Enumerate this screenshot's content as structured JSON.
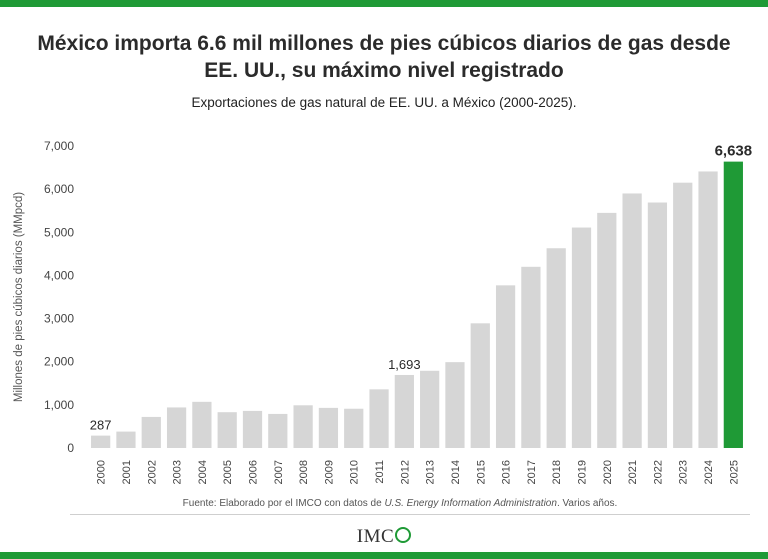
{
  "colors": {
    "brand_green": "#1f9a36",
    "bar_gray": "#d6d6d6",
    "highlight_bar": "#1f9a36"
  },
  "title": "México importa 6.6 mil millones de pies cúbicos diarios de gas desde EE. UU., su máximo nivel registrado",
  "subtitle": "Exportaciones de gas natural de EE. UU. a México (2000-2025).",
  "source": {
    "prefix": "Fuente: Elaborado por el IMCO con datos de ",
    "italic": "U.S. Energy Information Administration",
    "suffix": ". Varios años."
  },
  "logo": {
    "text": "IMC"
  },
  "chart_data": {
    "type": "bar",
    "ylabel": "Millones de pies cúbicos diarios (MMpcd)",
    "xlabel": "",
    "ylim": [
      0,
      7000
    ],
    "yticks": [
      "0",
      "1,000",
      "2,000",
      "3,000",
      "4,000",
      "5,000",
      "6,000",
      "7,000"
    ],
    "grid": false,
    "categories": [
      "2000",
      "2001",
      "2002",
      "2003",
      "2004",
      "2005",
      "2006",
      "2007",
      "2008",
      "2009",
      "2010",
      "2011",
      "2012",
      "2013",
      "2014",
      "2015",
      "2016",
      "2017",
      "2018",
      "2019",
      "2020",
      "2021",
      "2022",
      "2023",
      "2024",
      "2025"
    ],
    "values": [
      287,
      380,
      720,
      940,
      1070,
      830,
      860,
      790,
      990,
      930,
      910,
      1360,
      1693,
      1790,
      1990,
      2890,
      3770,
      4200,
      4630,
      5110,
      5450,
      5900,
      5690,
      6150,
      6410,
      6638
    ],
    "highlight_index": 25,
    "data_labels": [
      {
        "index": 0,
        "text": "287"
      },
      {
        "index": 12,
        "text": "1,693"
      },
      {
        "index": 25,
        "text": "6,638"
      }
    ]
  }
}
